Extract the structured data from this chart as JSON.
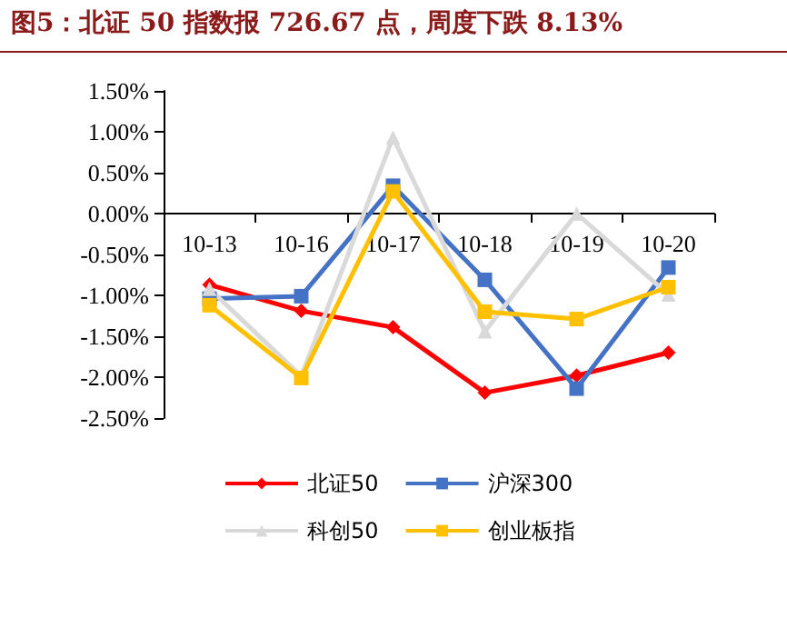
{
  "chart_data": {
    "type": "line",
    "title": "图5：北证 50 指数报 726.67 点，周度下跌 8.13%",
    "categories": [
      "10-13",
      "10-16",
      "10-17",
      "10-18",
      "10-19",
      "10-20"
    ],
    "series": [
      {
        "name": "北证50",
        "color": "#ff0000",
        "marker": "diamond",
        "values": [
          -0.87,
          -1.19,
          -1.39,
          -2.19,
          -1.98,
          -1.7
        ]
      },
      {
        "name": "沪深300",
        "color": "#4472c4",
        "marker": "square",
        "values": [
          -1.04,
          -1.01,
          0.34,
          -0.81,
          -2.14,
          -0.66
        ]
      },
      {
        "name": "科创50",
        "color": "#d9d9d9",
        "marker": "triangle",
        "values": [
          -0.92,
          -1.99,
          0.93,
          -1.44,
          0.0,
          -0.99
        ]
      },
      {
        "name": "创业板指",
        "color": "#ffc000",
        "marker": "square",
        "values": [
          -1.12,
          -2.01,
          0.27,
          -1.2,
          -1.29,
          -0.9
        ]
      }
    ],
    "ylim": [
      -2.5,
      1.5
    ],
    "yticks": [
      {
        "value": -2.5,
        "label": "-2.50%"
      },
      {
        "value": -2.0,
        "label": "-2.00%"
      },
      {
        "value": -1.5,
        "label": "-1.50%"
      },
      {
        "value": -1.0,
        "label": "-1.00%"
      },
      {
        "value": -0.5,
        "label": "-0.50%"
      },
      {
        "value": 0,
        "label": "0.00%"
      },
      {
        "value": 0.5,
        "label": "0.50%"
      },
      {
        "value": 1.0,
        "label": "1.00%"
      },
      {
        "value": 1.5,
        "label": "1.50%"
      }
    ],
    "grid": false,
    "legend": "bottom",
    "line_style": "solid"
  }
}
